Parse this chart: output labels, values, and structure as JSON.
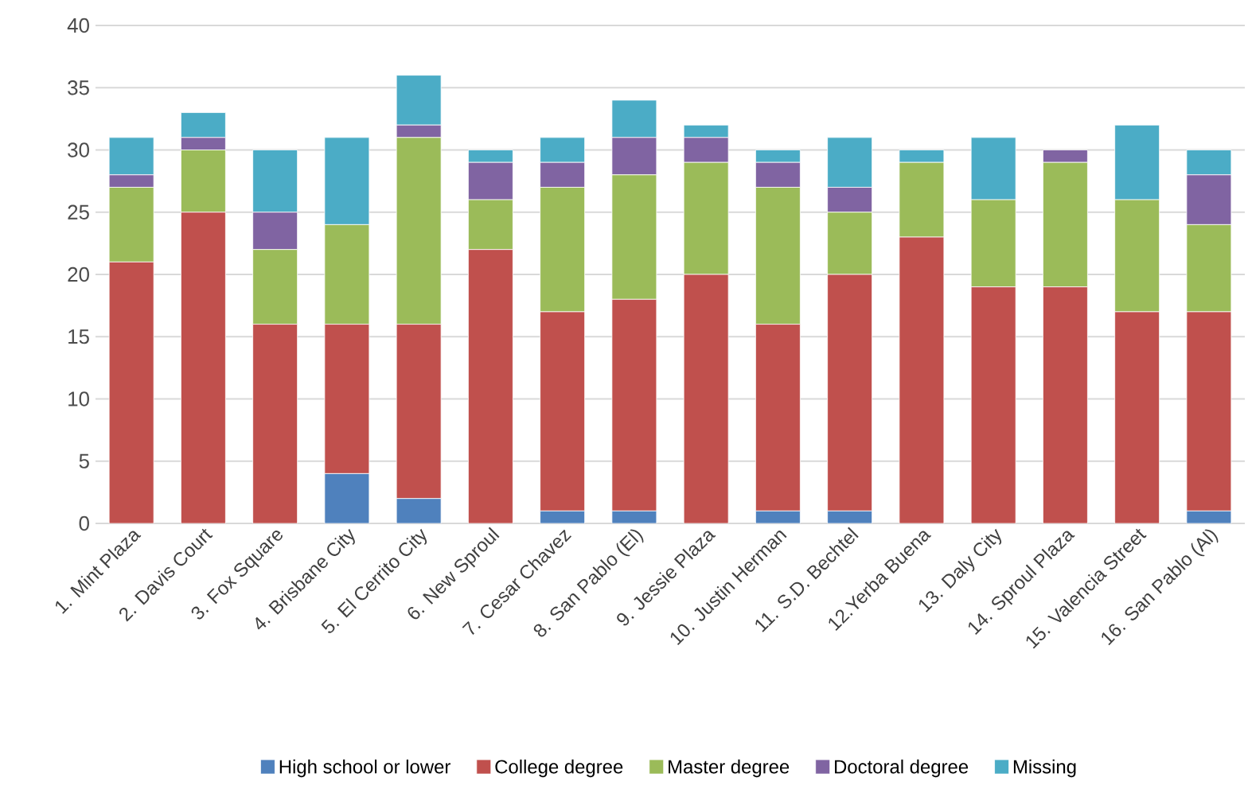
{
  "chart_data": {
    "type": "bar",
    "stacked": true,
    "categories": [
      "1. Mint Plaza",
      "2. Davis Court",
      "3. Fox Square",
      "4. Brisbane City",
      "5. El Cerrito City",
      "6. New Sproul",
      "7. Cesar Chavez",
      "8. San Pablo (El)",
      "9. Jessie Plaza",
      "10. Justin Herman",
      "11. S.D. Bechtel",
      "12.Yerba Buena",
      "13. Daly City",
      "14. Sproul Plaza",
      "15. Valencia Street",
      "16. San Pablo (Al)"
    ],
    "series": [
      {
        "name": "High school or lower",
        "color": "#4f81bd",
        "values": [
          0,
          0,
          0,
          4,
          2,
          0,
          1,
          1,
          0,
          1,
          1,
          0,
          0,
          0,
          0,
          1
        ]
      },
      {
        "name": "College degree",
        "color": "#c0504d",
        "values": [
          21,
          25,
          16,
          12,
          14,
          22,
          16,
          17,
          20,
          15,
          19,
          23,
          19,
          19,
          17,
          16
        ]
      },
      {
        "name": "Master degree",
        "color": "#9bbb59",
        "values": [
          6,
          5,
          6,
          8,
          15,
          4,
          10,
          10,
          9,
          11,
          5,
          6,
          7,
          10,
          9,
          7
        ]
      },
      {
        "name": "Doctoral degree",
        "color": "#8064a2",
        "values": [
          1,
          1,
          3,
          0,
          1,
          3,
          2,
          3,
          2,
          2,
          2,
          0,
          0,
          1,
          0,
          4
        ]
      },
      {
        "name": "Missing",
        "color": "#4bacc6",
        "values": [
          3,
          2,
          5,
          7,
          4,
          1,
          2,
          3,
          1,
          1,
          4,
          1,
          5,
          0,
          6,
          2
        ]
      }
    ],
    "ylim": [
      0,
      40
    ],
    "yticks": [
      0,
      5,
      10,
      15,
      20,
      25,
      30,
      35,
      40
    ],
    "grid": "y",
    "legend": "bottom"
  }
}
